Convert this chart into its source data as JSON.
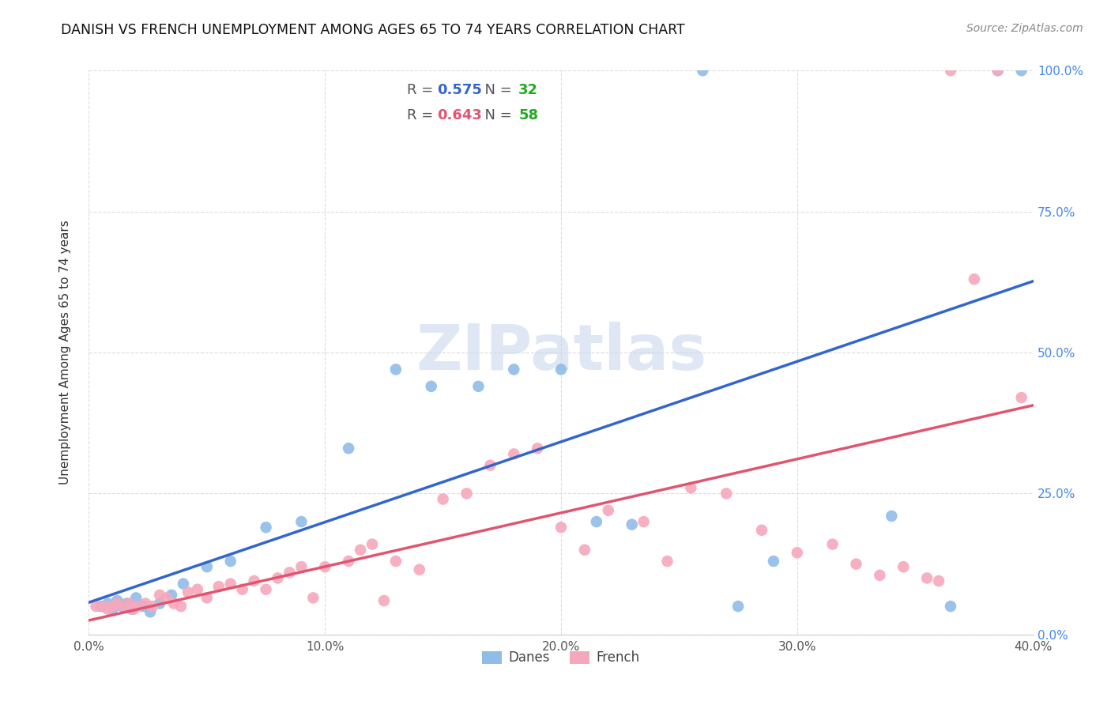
{
  "title": "DANISH VS FRENCH UNEMPLOYMENT AMONG AGES 65 TO 74 YEARS CORRELATION CHART",
  "source": "Source: ZipAtlas.com",
  "ylabel": "Unemployment Among Ages 65 to 74 years",
  "xlim": [
    0,
    40
  ],
  "ylim": [
    0,
    100
  ],
  "xtick_labels": [
    "0.0%",
    "10.0%",
    "20.0%",
    "30.0%",
    "40.0%"
  ],
  "xtick_vals": [
    0,
    10,
    20,
    30,
    40
  ],
  "ytick_labels": [
    "0.0%",
    "25.0%",
    "50.0%",
    "75.0%",
    "100.0%"
  ],
  "ytick_vals": [
    0,
    25,
    50,
    75,
    100
  ],
  "danes_color": "#90bce8",
  "french_color": "#f5a8bc",
  "danes_line_color": "#3366cc",
  "french_line_color": "#e05570",
  "danes_R": "0.575",
  "danes_N": "32",
  "french_R": "0.643",
  "french_N": "58",
  "legend_r_color_blue": "#3366cc",
  "legend_r_color_pink": "#e05570",
  "legend_n_color": "#22aa22",
  "danes_x": [
    0.5,
    0.8,
    1.0,
    1.2,
    1.4,
    1.6,
    1.8,
    2.0,
    2.3,
    2.6,
    3.0,
    3.5,
    4.0,
    5.0,
    6.0,
    7.5,
    9.0,
    11.0,
    13.0,
    14.5,
    16.5,
    18.0,
    20.0,
    21.5,
    23.0,
    26.0,
    27.5,
    29.0,
    34.0,
    36.5,
    38.5,
    39.5
  ],
  "danes_y": [
    5.0,
    5.5,
    4.5,
    6.0,
    5.0,
    5.5,
    4.5,
    6.5,
    5.0,
    4.0,
    5.5,
    7.0,
    9.0,
    12.0,
    13.0,
    19.0,
    20.0,
    33.0,
    47.0,
    44.0,
    44.0,
    47.0,
    47.0,
    20.0,
    19.5,
    100.0,
    5.0,
    13.0,
    21.0,
    5.0,
    100.0,
    100.0
  ],
  "french_x": [
    0.3,
    0.6,
    0.8,
    1.0,
    1.2,
    1.5,
    1.7,
    1.9,
    2.1,
    2.4,
    2.7,
    3.0,
    3.3,
    3.6,
    3.9,
    4.2,
    4.6,
    5.0,
    5.5,
    6.0,
    6.5,
    7.0,
    7.5,
    8.0,
    8.5,
    9.0,
    9.5,
    10.0,
    11.0,
    11.5,
    12.0,
    12.5,
    13.0,
    14.0,
    15.0,
    16.0,
    17.0,
    18.0,
    19.0,
    20.0,
    21.0,
    22.0,
    23.5,
    24.5,
    25.5,
    27.0,
    28.5,
    30.0,
    31.5,
    32.5,
    33.5,
    34.5,
    35.5,
    36.0,
    36.5,
    37.5,
    38.5,
    39.5
  ],
  "french_y": [
    5.0,
    5.0,
    4.5,
    5.0,
    5.5,
    5.0,
    5.5,
    4.5,
    5.0,
    5.5,
    5.0,
    7.0,
    6.5,
    5.5,
    5.0,
    7.5,
    8.0,
    6.5,
    8.5,
    9.0,
    8.0,
    9.5,
    8.0,
    10.0,
    11.0,
    12.0,
    6.5,
    12.0,
    13.0,
    15.0,
    16.0,
    6.0,
    13.0,
    11.5,
    24.0,
    25.0,
    30.0,
    32.0,
    33.0,
    19.0,
    15.0,
    22.0,
    20.0,
    13.0,
    26.0,
    25.0,
    18.5,
    14.5,
    16.0,
    12.5,
    10.5,
    12.0,
    10.0,
    9.5,
    100.0,
    63.0,
    100.0,
    42.0
  ],
  "watermark": "ZIPatlas",
  "background_color": "#ffffff",
  "grid_color": "#dddddd",
  "title_color": "#111111",
  "source_color": "#888888",
  "axis_label_color": "#333333",
  "tick_color": "#555555",
  "right_tick_color": "#4488ee"
}
